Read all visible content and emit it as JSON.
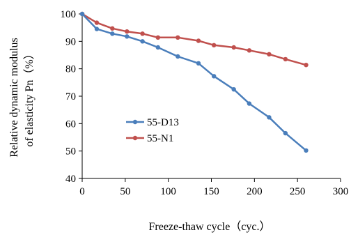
{
  "chart_data": {
    "type": "line",
    "title": "",
    "xlabel": "Freeze-thaw cycle（cyc.）",
    "ylabel_lines": [
      "Relative dynamic modulus",
      "of elasticity Pn（%）"
    ],
    "xlim": [
      0,
      300
    ],
    "ylim": [
      40,
      100
    ],
    "x_ticks": [
      0,
      50,
      100,
      150,
      200,
      250,
      300
    ],
    "y_ticks": [
      40,
      50,
      60,
      70,
      80,
      90,
      100
    ],
    "grid": false,
    "legend_position": "center-left",
    "series": [
      {
        "name": "55-D13",
        "color": "#4a7ebb",
        "x": [
          0,
          17,
          35,
          52,
          70,
          88,
          111,
          135,
          153,
          176,
          194,
          217,
          236,
          260
        ],
        "y": [
          100,
          94.5,
          92.8,
          91.8,
          90,
          87.8,
          84.5,
          82,
          77.3,
          72.5,
          67.3,
          62.3,
          56.5,
          50.2
        ]
      },
      {
        "name": "55-N1",
        "color": "#c0504d",
        "x": [
          0,
          17,
          35,
          52,
          70,
          88,
          111,
          135,
          153,
          176,
          194,
          217,
          236,
          260
        ],
        "y": [
          100,
          96.8,
          94.7,
          93.6,
          92.8,
          91.4,
          91.4,
          90.2,
          88.6,
          87.8,
          86.7,
          85.3,
          83.5,
          81.4
        ]
      }
    ]
  }
}
